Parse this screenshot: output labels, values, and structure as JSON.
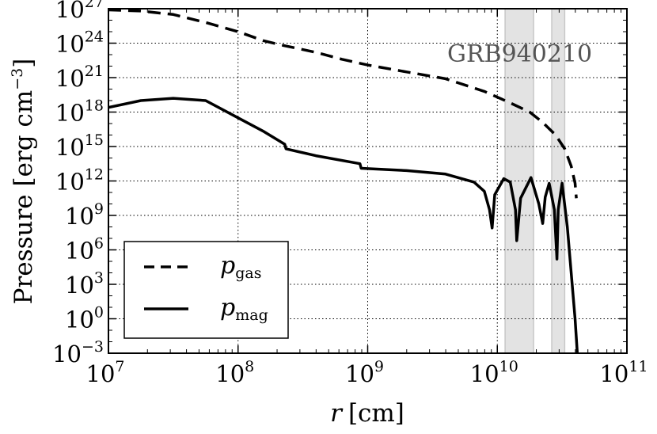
{
  "chart_data": {
    "type": "line",
    "title": "",
    "annotation": "GRB940210",
    "xlabel_var": "r",
    "xlabel_unit": "[cm]",
    "ylabel": "Pressure [erg cm",
    "ylabel_sup": "−3",
    "ylabel_close": "]",
    "x_scale": "log",
    "y_scale": "log",
    "xlim_exp": [
      7,
      11
    ],
    "ylim_exp": [
      -3,
      27
    ],
    "x_ticks": [
      {
        "base": "10",
        "exp": "7",
        "value": 7
      },
      {
        "base": "10",
        "exp": "8",
        "value": 8
      },
      {
        "base": "10",
        "exp": "9",
        "value": 9
      },
      {
        "base": "10",
        "exp": "10",
        "value": 10
      },
      {
        "base": "10",
        "exp": "11",
        "value": 11
      }
    ],
    "y_ticks": [
      {
        "base": "10",
        "exp": "−3",
        "value": -3
      },
      {
        "base": "10",
        "exp": "0",
        "value": 0
      },
      {
        "base": "10",
        "exp": "3",
        "value": 3
      },
      {
        "base": "10",
        "exp": "6",
        "value": 6
      },
      {
        "base": "10",
        "exp": "9",
        "value": 9
      },
      {
        "base": "10",
        "exp": "12",
        "value": 12
      },
      {
        "base": "10",
        "exp": "15",
        "value": 15
      },
      {
        "base": "10",
        "exp": "18",
        "value": 18
      },
      {
        "base": "10",
        "exp": "21",
        "value": 21
      },
      {
        "base": "10",
        "exp": "24",
        "value": 24
      },
      {
        "base": "10",
        "exp": "27",
        "value": 27
      }
    ],
    "grid": true,
    "shaded_bands_log10_r": [
      [
        10.06,
        10.28
      ],
      [
        10.42,
        10.52
      ]
    ],
    "legend_position": "lower-left",
    "legend": [
      {
        "symbol": "p",
        "sub": "gas",
        "style": "dashed"
      },
      {
        "symbol": "p",
        "sub": "mag",
        "style": "solid"
      }
    ],
    "series": [
      {
        "name": "p_gas",
        "style": "dashed",
        "log10_r": [
          7.0,
          7.25,
          7.5,
          7.75,
          8.0,
          8.2,
          8.35,
          8.6,
          8.8,
          9.0,
          9.3,
          9.6,
          9.9,
          10.1,
          10.25,
          10.35,
          10.45,
          10.52,
          10.57,
          10.6,
          10.61
        ],
        "log10_p": [
          26.9,
          26.8,
          26.5,
          25.8,
          25.0,
          24.2,
          23.8,
          23.2,
          22.6,
          22.1,
          21.5,
          20.9,
          19.8,
          18.8,
          18.0,
          17.1,
          16.0,
          14.8,
          13.3,
          11.8,
          10.5
        ]
      },
      {
        "name": "p_mag",
        "style": "solid",
        "log10_r": [
          7.0,
          7.25,
          7.5,
          7.75,
          8.0,
          8.2,
          8.36,
          8.37,
          8.6,
          8.94,
          8.95,
          9.3,
          9.6,
          9.82,
          9.9,
          9.94,
          9.96,
          9.98,
          10.05,
          10.1,
          10.14,
          10.15,
          10.18,
          10.26,
          10.32,
          10.35,
          10.37,
          10.4,
          10.44,
          10.46,
          10.47,
          10.5,
          10.54,
          10.6,
          10.62
        ],
        "log10_p": [
          18.4,
          19.0,
          19.2,
          19.0,
          17.5,
          16.3,
          15.2,
          14.8,
          14.2,
          13.5,
          13.1,
          12.9,
          12.6,
          11.9,
          11.1,
          9.5,
          7.9,
          10.8,
          12.2,
          11.9,
          9.5,
          6.8,
          10.5,
          12.3,
          10.0,
          8.3,
          10.6,
          11.8,
          9.5,
          5.2,
          9.5,
          11.8,
          8.0,
          0.0,
          -3.5
        ]
      }
    ]
  }
}
